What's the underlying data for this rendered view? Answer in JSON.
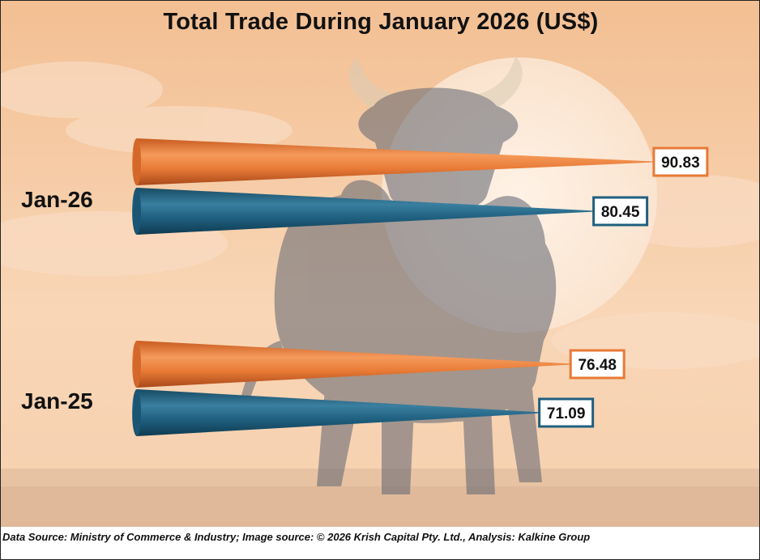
{
  "chart_data": {
    "type": "bar",
    "title": "Total Trade During January 2026 (US$)",
    "categories": [
      "Jan-26",
      "Jan-25"
    ],
    "series": [
      {
        "values": [
          90.83,
          76.48
        ],
        "color": "#e87a36"
      },
      {
        "values": [
          80.45,
          71.09
        ],
        "color": "#1f5f7f"
      }
    ]
  },
  "footer": {
    "source": "Data Source: Ministry of Commerce & Industry; Image source: © 2026 Krish Capital Pty. Ltd., Analysis: Kalkine Group"
  },
  "colors": {
    "orange": "#e87a36",
    "blue": "#1f5f7f",
    "sky_top": "#f6c9a2",
    "sky_bottom": "#f9dcc0"
  }
}
